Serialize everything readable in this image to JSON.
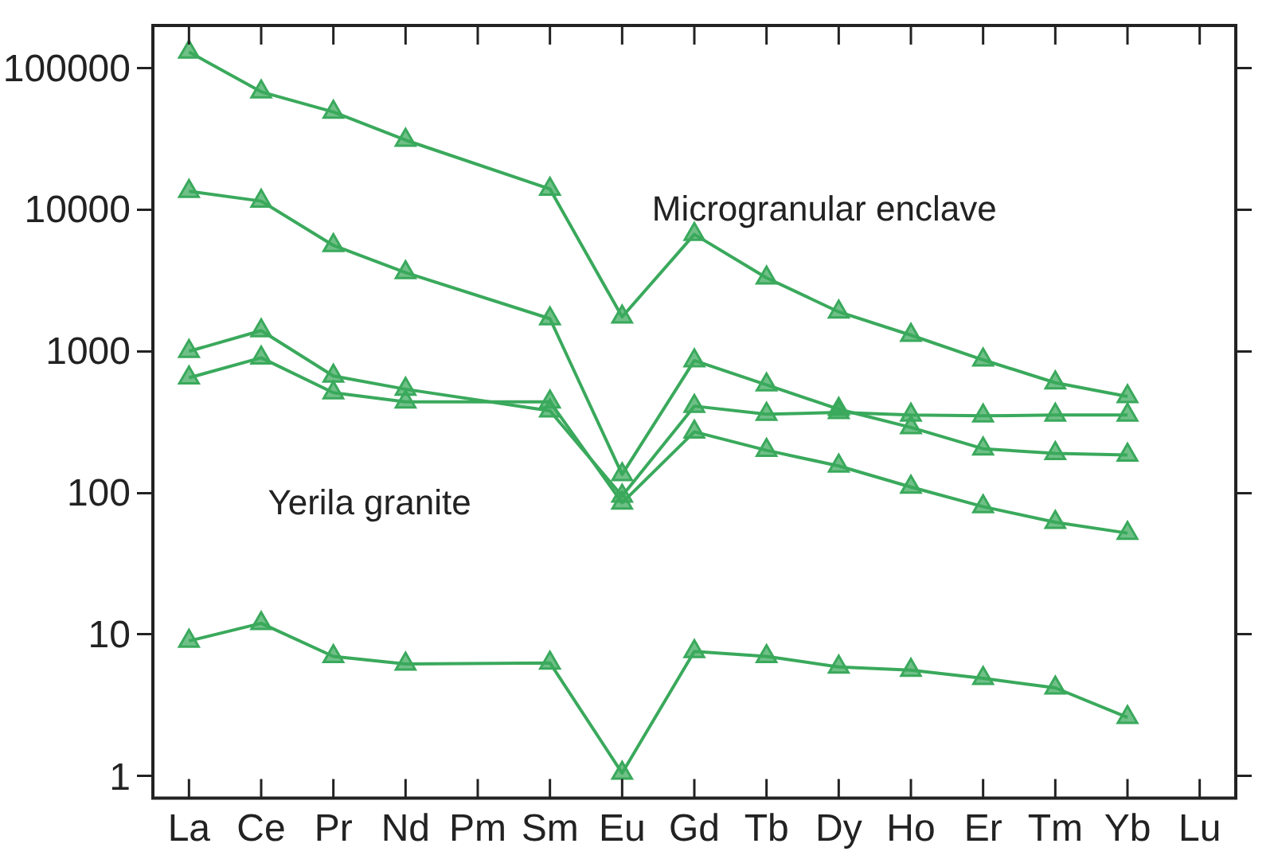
{
  "chart_data": {
    "type": "line",
    "categories": [
      "La",
      "Ce",
      "Pr",
      "Nd",
      "Pm",
      "Sm",
      "Eu",
      "Gd",
      "Tb",
      "Dy",
      "Ho",
      "Er",
      "Tm",
      "Yb",
      "Lu"
    ],
    "log": "y",
    "grid": false,
    "legend": false,
    "marker": "triangle",
    "line_style": "solid",
    "ylim": [
      0.7,
      200000
    ],
    "yticks": [
      1,
      10,
      100,
      1000,
      10000,
      100000
    ],
    "series": [
      {
        "color": "#3aa95c",
        "values": [
          130000,
          68000,
          49000,
          31000,
          null,
          14000,
          1750,
          6700,
          3300,
          1900,
          1300,
          870,
          600,
          480,
          null
        ]
      },
      {
        "color": "#3aa95c",
        "values": [
          13500,
          11500,
          5600,
          3600,
          null,
          1700,
          135,
          860,
          580,
          390,
          290,
          205,
          190,
          185,
          null
        ]
      },
      {
        "color": "#3aa95c",
        "values": [
          1000,
          1400,
          670,
          540,
          null,
          380,
          95,
          410,
          360,
          370,
          355,
          350,
          355,
          355,
          null
        ]
      },
      {
        "color": "#3aa95c",
        "values": [
          650,
          900,
          510,
          440,
          null,
          440,
          85,
          270,
          200,
          155,
          110,
          80,
          62,
          52,
          null
        ]
      },
      {
        "color": "#3aa95c",
        "values": [
          9,
          12,
          7,
          6.2,
          null,
          6.3,
          1.05,
          7.6,
          7,
          5.9,
          5.6,
          4.9,
          4.2,
          2.6,
          null
        ]
      }
    ],
    "annotations": [
      "Yerila granite",
      "Microgranular enclave"
    ]
  }
}
